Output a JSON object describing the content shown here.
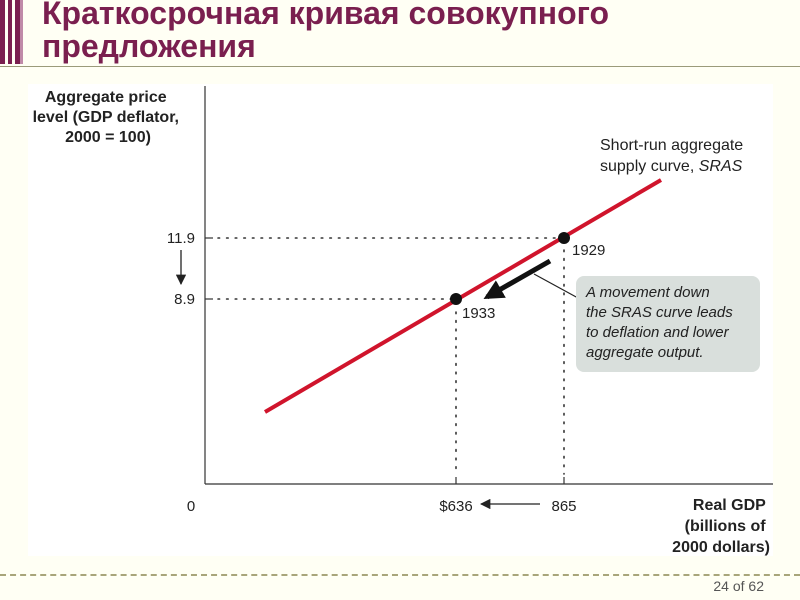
{
  "slide": {
    "title": "Краткосрочная кривая совокупного предложения",
    "page_number": "24 of 62"
  },
  "colors": {
    "title": "#7A1F4F",
    "sras_curve": "#D0142C",
    "callout_background": "#D9DFDC"
  },
  "chart_data": {
    "type": "line",
    "ylabel": [
      "Aggregate price",
      "level (GDP deflator,",
      "2000 = 100)"
    ],
    "xlabel": [
      "Real GDP",
      "(billions of",
      "2000 dollars)"
    ],
    "origin_label": "0",
    "y_ticks": [
      "11.9",
      "8.9"
    ],
    "x_ticks": [
      "$636",
      "865"
    ],
    "series": [
      {
        "name": "Short-run aggregate supply curve, SRAS",
        "label_lines": [
          "Short-run aggregate",
          "supply curve, ",
          "SRAS"
        ]
      }
    ],
    "points": [
      {
        "year": "1929",
        "x": 865,
        "y": 11.9
      },
      {
        "year": "1933",
        "x": 636,
        "y": 8.9
      }
    ],
    "annotation": [
      "A movement down",
      "the SRAS curve leads",
      "to deflation and lower",
      "aggregate output."
    ]
  }
}
